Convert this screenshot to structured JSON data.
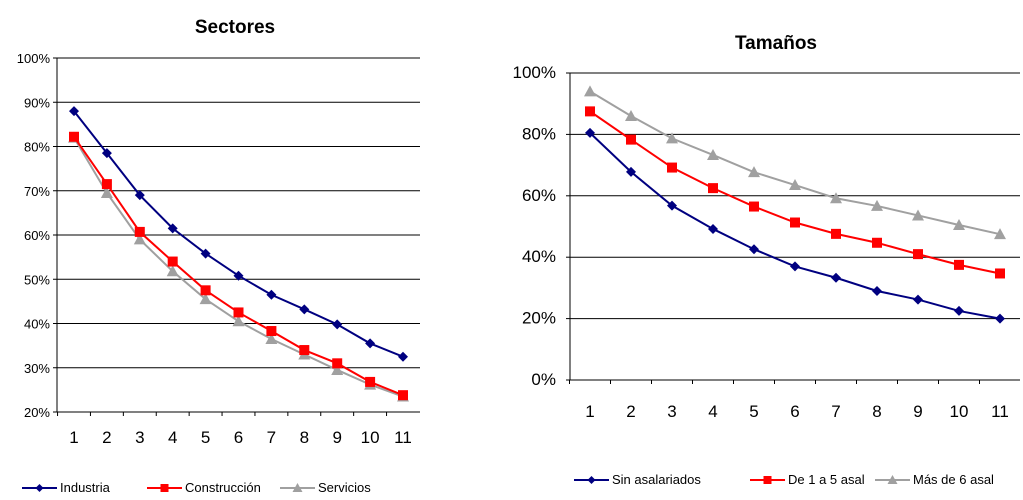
{
  "chart_data": [
    {
      "type": "line",
      "title": "Sectores",
      "x": [
        1,
        2,
        3,
        4,
        5,
        6,
        7,
        8,
        9,
        10,
        11
      ],
      "ylim": [
        0.2,
        1.0
      ],
      "yticks": [
        "20%",
        "30%",
        "40%",
        "50%",
        "60%",
        "70%",
        "80%",
        "90%",
        "100%"
      ],
      "grid": true,
      "legend": "bottom",
      "series": [
        {
          "name": "Industria",
          "color": "#000080",
          "marker": "diamond",
          "values": [
            0.88,
            0.785,
            0.69,
            0.615,
            0.558,
            0.508,
            0.465,
            0.432,
            0.398,
            0.355,
            0.325
          ]
        },
        {
          "name": "Construcción",
          "color": "#ff0000",
          "marker": "square",
          "values": [
            0.822,
            0.715,
            0.607,
            0.54,
            0.475,
            0.425,
            0.383,
            0.34,
            0.31,
            0.268,
            0.238
          ]
        },
        {
          "name": "Servicios",
          "color": "#a0a0a0",
          "marker": "triangle",
          "values": [
            0.82,
            0.695,
            0.59,
            0.518,
            0.455,
            0.405,
            0.365,
            0.33,
            0.295,
            0.262,
            0.235
          ]
        }
      ]
    },
    {
      "type": "line",
      "title": "Tamaños",
      "x": [
        1,
        2,
        3,
        4,
        5,
        6,
        7,
        8,
        9,
        10,
        11
      ],
      "ylim": [
        0,
        1.0
      ],
      "yticks": [
        "0%",
        "20%",
        "40%",
        "60%",
        "80%",
        "100%"
      ],
      "grid": true,
      "legend": "bottom",
      "series": [
        {
          "name": "Sin asalariados",
          "color": "#000080",
          "marker": "diamond",
          "values": [
            0.805,
            0.678,
            0.568,
            0.492,
            0.426,
            0.37,
            0.333,
            0.29,
            0.262,
            0.225,
            0.2
          ]
        },
        {
          "name": "De 1 a 5 asal",
          "color": "#ff0000",
          "marker": "square",
          "values": [
            0.875,
            0.783,
            0.692,
            0.625,
            0.565,
            0.513,
            0.476,
            0.447,
            0.41,
            0.375,
            0.347
          ]
        },
        {
          "name": "Más de 6 asal",
          "color": "#a0a0a0",
          "marker": "triangle",
          "values": [
            0.94,
            0.86,
            0.787,
            0.733,
            0.677,
            0.635,
            0.592,
            0.567,
            0.536,
            0.505,
            0.475
          ]
        }
      ]
    }
  ]
}
